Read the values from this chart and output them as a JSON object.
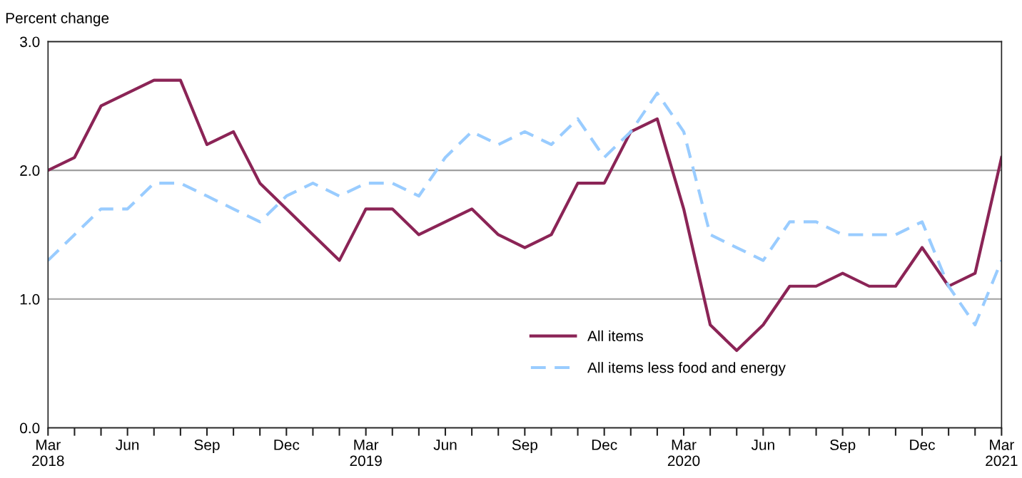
{
  "chart_data": {
    "type": "line",
    "ylabel": "Percent change",
    "categories": [
      "Mar\n2018",
      null,
      null,
      "Jun",
      null,
      null,
      "Sep",
      null,
      null,
      "Dec",
      null,
      null,
      "Mar\n2019",
      null,
      null,
      "Jun",
      null,
      null,
      "Sep",
      null,
      null,
      "Dec",
      null,
      null,
      "Mar\n2020",
      null,
      null,
      "Jun",
      null,
      null,
      "Sep",
      null,
      null,
      "Dec",
      null,
      null,
      "Mar\n2021"
    ],
    "series": [
      {
        "name": "All items",
        "color": "#8b2456",
        "line_style": "solid",
        "values": [
          2.0,
          2.1,
          2.5,
          2.6,
          2.7,
          2.7,
          2.2,
          2.3,
          1.9,
          1.7,
          1.5,
          1.3,
          1.7,
          1.7,
          1.5,
          1.6,
          1.7,
          1.5,
          1.4,
          1.5,
          1.9,
          1.9,
          2.3,
          2.4,
          1.7,
          0.8,
          0.6,
          0.8,
          1.1,
          1.1,
          1.2,
          1.1,
          1.1,
          1.4,
          1.1,
          1.2,
          2.1
        ]
      },
      {
        "name": "All items less food and energy",
        "color": "#99ccff",
        "line_style": "dashed",
        "values": [
          1.3,
          1.5,
          1.7,
          1.7,
          1.9,
          1.9,
          1.8,
          1.7,
          1.6,
          1.8,
          1.9,
          1.8,
          1.9,
          1.9,
          1.8,
          2.1,
          2.3,
          2.2,
          2.3,
          2.2,
          2.4,
          2.1,
          2.3,
          2.6,
          2.3,
          1.5,
          1.4,
          1.3,
          1.6,
          1.6,
          1.5,
          1.5,
          1.5,
          1.6,
          1.1,
          0.8,
          1.3
        ]
      }
    ],
    "ylim": [
      0,
      3
    ],
    "yticks": [
      {
        "value": 0,
        "label": "0.0"
      },
      {
        "value": 1,
        "label": "1.0"
      },
      {
        "value": 2,
        "label": "2.0"
      },
      {
        "value": 3,
        "label": "3.0"
      }
    ],
    "grid": "y",
    "legend": "bottom",
    "marker": "none"
  }
}
